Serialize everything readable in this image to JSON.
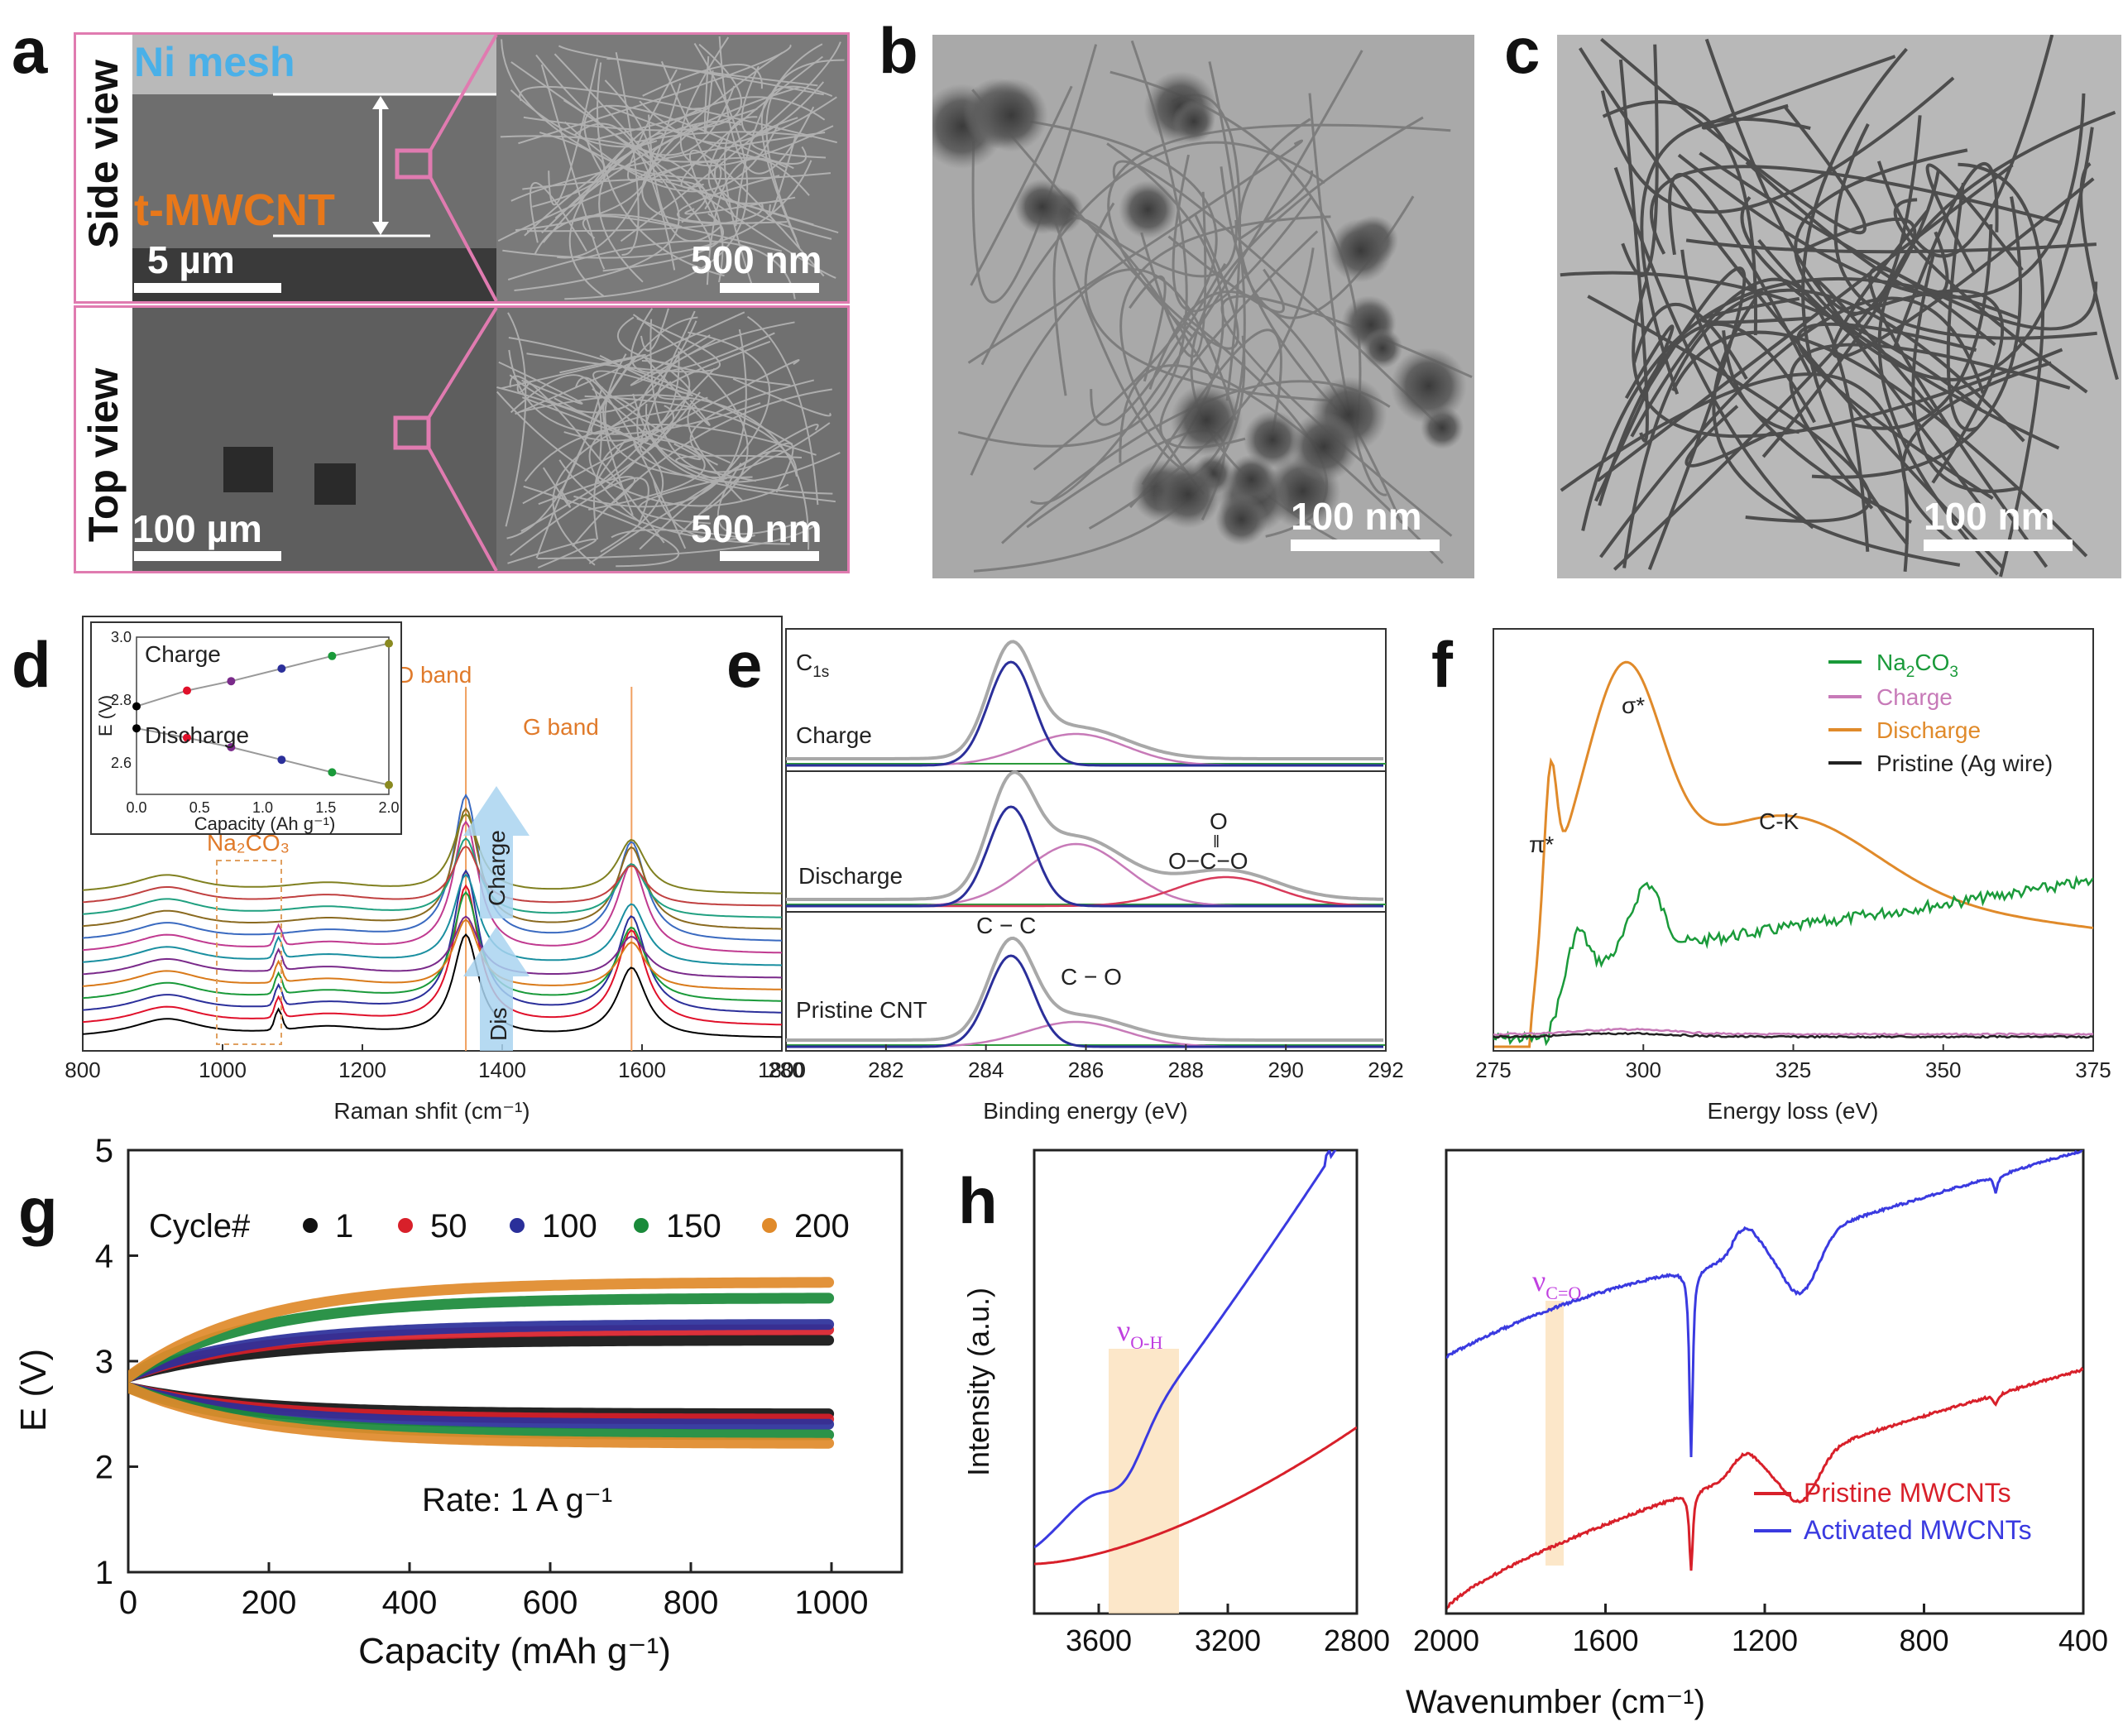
{
  "figure": {
    "panel_labels": [
      "a",
      "b",
      "c",
      "d",
      "e",
      "f",
      "g",
      "h"
    ],
    "panel_a": {
      "side_view_label": "Side view",
      "top_view_label": "Top view",
      "ni_mesh_label": "Ni mesh",
      "cnt_label": "t-MWCNT",
      "scale_side_left": "5 µm",
      "scale_side_right": "500 nm",
      "scale_top_left": "100 µm",
      "scale_top_right": "500 nm",
      "frame_color": "#e07bb0"
    },
    "panel_b": {
      "scale": "100 nm"
    },
    "panel_c": {
      "scale": "100 nm"
    }
  },
  "chart_data": [
    {
      "id": "d",
      "type": "line",
      "xlabel": "Raman shfit (cm⁻¹)",
      "xlim": [
        800,
        1800
      ],
      "xticks": [
        800,
        1000,
        1200,
        1400,
        1600,
        1800
      ],
      "annotations": {
        "d_band": "D band",
        "g_band": "G band",
        "na2co3": "Na₂CO₃",
        "charge": "Charge",
        "dis": "Dis"
      },
      "peaks": {
        "d_band_center": 1348,
        "g_band_center": 1585,
        "na2co3_center": 1080
      },
      "series_colors": [
        "#000000",
        "#e0102a",
        "#2b2f9a",
        "#1a9a3a",
        "#d97a1a",
        "#7a2a8a",
        "#1a8fa0",
        "#c03a90",
        "#3a6ac0",
        "#8a6a20",
        "#20a080",
        "#c04040",
        "#808020"
      ],
      "inset": {
        "ylabel": "E (V)",
        "xlabel": "Capacity (Ah g⁻¹)",
        "xlim": [
          0.0,
          2.0
        ],
        "ylim": [
          2.5,
          3.0
        ],
        "xticks": [
          0.0,
          0.5,
          1.0,
          1.5,
          2.0
        ],
        "yticks": [
          2.6,
          2.8,
          3.0
        ],
        "charge_label": "Charge",
        "discharge_label": "Discharge",
        "charge_x": [
          0.0,
          0.4,
          0.75,
          1.15,
          1.55,
          2.0
        ],
        "charge_y": [
          2.78,
          2.83,
          2.86,
          2.9,
          2.94,
          2.98
        ],
        "discharge_x": [
          0.0,
          0.4,
          0.75,
          1.15,
          1.55,
          2.0
        ],
        "discharge_y": [
          2.71,
          2.68,
          2.65,
          2.61,
          2.57,
          2.53
        ],
        "point_colors": [
          "#000000",
          "#e0102a",
          "#7a2a8a",
          "#2b2f9a",
          "#1a9a3a",
          "#8a8a20"
        ]
      }
    },
    {
      "id": "e",
      "type": "line",
      "title": "C1s",
      "xlabel": "Binding energy (eV)",
      "xlim": [
        280,
        292
      ],
      "xticks": [
        280,
        282,
        284,
        286,
        288,
        290,
        292
      ],
      "rows": [
        "Charge",
        "Discharge",
        "Pristine CNT"
      ],
      "annotations": {
        "cc": "C − C",
        "co": "C − O",
        "carbonate_o": "O",
        "carbonate_eq": "‖",
        "carbonate": "O−C−O"
      },
      "components": {
        "cc": {
          "center": 284.5,
          "color": "#2b2f9a"
        },
        "co": {
          "center": 285.8,
          "color": "#c77ab8"
        },
        "carbonate": {
          "center": 288.8,
          "color": "#d83a5a"
        },
        "envelope_color": "#a8a8a8",
        "baseline_color": "#2a9a3a"
      }
    },
    {
      "id": "f",
      "type": "line",
      "xlabel": "Energy loss (eV)",
      "xlim": [
        275,
        375
      ],
      "xticks": [
        275,
        300,
        325,
        350,
        375
      ],
      "annotations": {
        "pi": "π*",
        "sigma": "σ*",
        "ck": "C-K"
      },
      "series": [
        {
          "name": "Na2CO3",
          "label_main": "Na",
          "label_sub": "2",
          "label_rest": "CO",
          "label_sub2": "3",
          "color": "#1a9a3a"
        },
        {
          "name": "Charge",
          "color": "#c77ab8"
        },
        {
          "name": "Discharge",
          "color": "#e08a2a"
        },
        {
          "name": "Pristine (Ag wire)",
          "color": "#222222"
        }
      ]
    },
    {
      "id": "g",
      "type": "scatter",
      "xlabel": "Capacity (mAh g⁻¹)",
      "ylabel": "E (V)",
      "xlim": [
        0,
        1100
      ],
      "ylim": [
        1,
        5
      ],
      "xticks": [
        0,
        200,
        400,
        600,
        800,
        1000
      ],
      "yticks": [
        1,
        2,
        3,
        4,
        5
      ],
      "legend_title": "Cycle#",
      "rate_label": "Rate: 1 A g⁻¹",
      "series": [
        {
          "name": "1",
          "color": "#111111",
          "charge_end": 3.2,
          "discharge_end": 2.5
        },
        {
          "name": "50",
          "color": "#d8202a",
          "charge_end": 3.3,
          "discharge_end": 2.45
        },
        {
          "name": "100",
          "color": "#2a2f9a",
          "charge_end": 3.35,
          "discharge_end": 2.4
        },
        {
          "name": "150",
          "color": "#1a8a3a",
          "charge_end": 3.6,
          "discharge_end": 2.3
        },
        {
          "name": "200",
          "color": "#e08a2a",
          "charge_end": 3.75,
          "discharge_end": 2.22
        }
      ]
    },
    {
      "id": "h",
      "type": "line",
      "ylabel": "Intensity (a.u.)",
      "xlabel": "Wavenumber (cm⁻¹)",
      "left_xticks": [
        3600,
        3200,
        2800
      ],
      "left_xlim": [
        3800,
        2800
      ],
      "right_xticks": [
        2000,
        1600,
        1200,
        800,
        400
      ],
      "right_xlim": [
        2000,
        400
      ],
      "oh_label_main": "ν",
      "oh_label_sub": "O-H",
      "co_label_main": "ν",
      "co_label_sub": "C=O",
      "band_color": "#fbe3c0",
      "series": [
        {
          "name": "Pristine MWCNTs",
          "color": "#d8202a"
        },
        {
          "name": "Activated MWCNTs",
          "color": "#3a3ae0"
        }
      ]
    }
  ]
}
